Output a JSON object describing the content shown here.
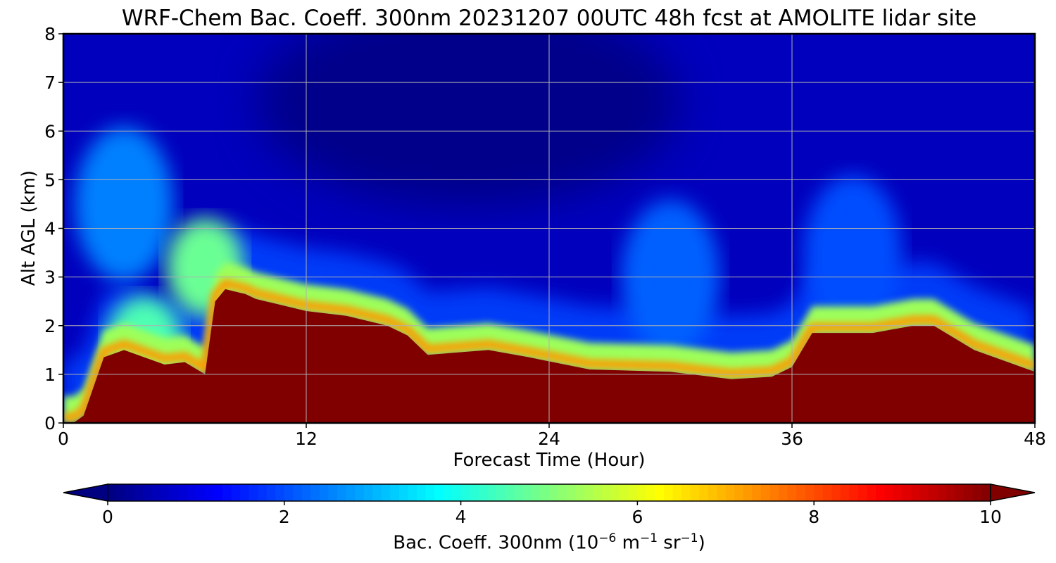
{
  "chart_data": {
    "type": "heatmap",
    "title": "WRF-Chem Bac. Coeff. 300nm  20231207 00UTC 48h fcst at AMOLITE lidar site",
    "xlabel": "Forecast Time (Hour)",
    "ylabel": "Alt AGL (km)",
    "xlim": [
      0,
      48
    ],
    "ylim": [
      0,
      8
    ],
    "x_ticks": [
      "0",
      "12",
      "24",
      "36",
      "48"
    ],
    "y_ticks": [
      "0",
      "1",
      "2",
      "3",
      "4",
      "5",
      "6",
      "7",
      "8"
    ],
    "grid": true,
    "colormap": "jet",
    "colorbar": {
      "label_main": "Bac. Coeff. 300nm  (10",
      "label_exp1": "−6",
      "label_mid": " m",
      "label_exp2": "−1",
      "label_mid2": " sr",
      "label_exp3": "−1",
      "label_end": ")",
      "range": [
        0,
        10
      ],
      "ticks": [
        "0",
        "2",
        "4",
        "6",
        "8",
        "10"
      ],
      "extend": "both",
      "orientation": "horizontal"
    },
    "saturated_layer_top_km": {
      "hour": [
        0,
        0.5,
        1,
        2,
        3,
        5,
        6,
        7,
        7.5,
        8,
        9,
        9.5,
        10,
        12,
        14,
        16,
        17,
        18,
        21,
        23,
        26,
        30,
        33,
        35,
        36,
        37,
        40,
        42,
        43,
        45,
        48
      ],
      "top": [
        0,
        0,
        0.15,
        1.35,
        1.5,
        1.2,
        1.25,
        1.0,
        2.5,
        2.75,
        2.65,
        2.55,
        2.5,
        2.3,
        2.2,
        2.0,
        1.8,
        1.4,
        1.5,
        1.35,
        1.1,
        1.05,
        0.9,
        0.95,
        1.15,
        1.85,
        1.85,
        2.0,
        2.0,
        1.5,
        1.05
      ]
    },
    "secondary_plumes": [
      {
        "hour": 3,
        "alt_km": 4.5,
        "value": 2.5
      },
      {
        "hour": 7,
        "alt_km": 3.2,
        "value": 4.8
      },
      {
        "hour": 4,
        "alt_km": 1.6,
        "value": 4.5
      },
      {
        "hour": 30,
        "alt_km": 3.0,
        "value": 2.2
      },
      {
        "hour": 39,
        "alt_km": 3.5,
        "value": 2.0
      }
    ]
  }
}
